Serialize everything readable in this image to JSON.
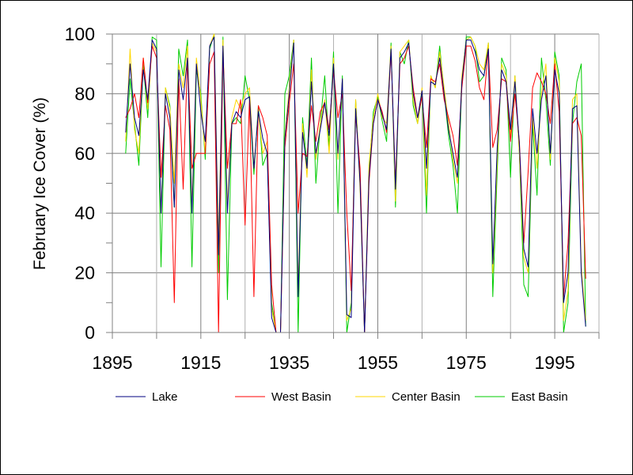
{
  "chart_data": {
    "type": "line",
    "title": "",
    "xlabel": "",
    "ylabel": "February Ice Cover (%)",
    "xlim": [
      1895,
      2005
    ],
    "ylim": [
      0,
      100
    ],
    "x_ticks": [
      "1895",
      "1915",
      "1935",
      "1955",
      "1975",
      "1995"
    ],
    "y_ticks": [
      "0",
      "20",
      "40",
      "60",
      "80",
      "100"
    ],
    "grid": true,
    "legend_position": "bottom",
    "x": [
      1898,
      1899,
      1900,
      1901,
      1902,
      1903,
      1904,
      1905,
      1906,
      1907,
      1908,
      1909,
      1910,
      1911,
      1912,
      1913,
      1914,
      1915,
      1916,
      1917,
      1918,
      1919,
      1920,
      1921,
      1922,
      1923,
      1924,
      1925,
      1926,
      1927,
      1928,
      1929,
      1930,
      1931,
      1932,
      1933,
      1934,
      1935,
      1936,
      1937,
      1938,
      1939,
      1940,
      1941,
      1942,
      1943,
      1944,
      1945,
      1946,
      1947,
      1948,
      1949,
      1950,
      1951,
      1952,
      1953,
      1954,
      1955,
      1956,
      1957,
      1958,
      1959,
      1960,
      1961,
      1962,
      1963,
      1964,
      1965,
      1966,
      1967,
      1968,
      1969,
      1970,
      1971,
      1972,
      1973,
      1974,
      1975,
      1976,
      1977,
      1978,
      1979,
      1980,
      1981,
      1982,
      1983,
      1984,
      1985,
      1986,
      1987,
      1988,
      1989,
      1990,
      1991,
      1992,
      1993,
      1994,
      1995,
      1996,
      1997,
      1998,
      1999,
      2000,
      2001,
      2002
    ],
    "series": [
      {
        "name": "Lake",
        "color": "#000080",
        "values": [
          67,
          90,
          72,
          66,
          88,
          78,
          98,
          95,
          40,
          80,
          72,
          42,
          88,
          78,
          92,
          40,
          90,
          74,
          64,
          96,
          99,
          26,
          96,
          40,
          70,
          74,
          72,
          78,
          79,
          55,
          74,
          65,
          60,
          5,
          0,
          0,
          65,
          80,
          97,
          12,
          67,
          55,
          84,
          60,
          68,
          77,
          66,
          90,
          60,
          85,
          6,
          5,
          75,
          50,
          0,
          52,
          70,
          78,
          73,
          68,
          95,
          48,
          92,
          94,
          97,
          80,
          72,
          81,
          55,
          84,
          83,
          92,
          80,
          68,
          60,
          52,
          84,
          98,
          98,
          94,
          88,
          86,
          95,
          23,
          62,
          88,
          84,
          68,
          84,
          63,
          28,
          22,
          75,
          60,
          78,
          86,
          60,
          88,
          80,
          10,
          20,
          75,
          76,
          20,
          2
        ]
      },
      {
        "name": "West Basin",
        "color": "#ff0000",
        "values": [
          72,
          75,
          80,
          72,
          92,
          77,
          96,
          92,
          52,
          76,
          68,
          10,
          85,
          48,
          92,
          55,
          60,
          60,
          60,
          90,
          94,
          0,
          94,
          55,
          70,
          70,
          78,
          36,
          78,
          12,
          76,
          72,
          66,
          16,
          0,
          0,
          62,
          77,
          90,
          40,
          60,
          59,
          76,
          64,
          74,
          77,
          68,
          88,
          72,
          80,
          40,
          14,
          73,
          55,
          0,
          50,
          70,
          78,
          74,
          67,
          94,
          50,
          90,
          92,
          96,
          82,
          72,
          79,
          62,
          85,
          84,
          90,
          78,
          72,
          66,
          56,
          82,
          96,
          96,
          91,
          82,
          78,
          95,
          62,
          68,
          85,
          84,
          64,
          80,
          64,
          30,
          54,
          82,
          87,
          84,
          80,
          70,
          90,
          74,
          12,
          30,
          70,
          72,
          66,
          18
        ]
      },
      {
        "name": "Center Basin",
        "color": "#ffd700",
        "values": [
          64,
          95,
          68,
          60,
          92,
          75,
          97,
          94,
          40,
          82,
          75,
          50,
          90,
          82,
          96,
          42,
          92,
          78,
          60,
          96,
          100,
          30,
          98,
          42,
          72,
          78,
          75,
          80,
          82,
          55,
          74,
          60,
          64,
          8,
          0,
          0,
          66,
          82,
          98,
          14,
          70,
          52,
          88,
          58,
          70,
          78,
          60,
          92,
          58,
          85,
          4,
          8,
          78,
          48,
          0,
          56,
          72,
          80,
          72,
          70,
          96,
          44,
          94,
          96,
          98,
          78,
          70,
          82,
          46,
          86,
          82,
          94,
          82,
          70,
          58,
          50,
          86,
          98,
          99,
          96,
          90,
          88,
          97,
          20,
          58,
          90,
          86,
          66,
          86,
          60,
          25,
          20,
          72,
          55,
          80,
          90,
          58,
          92,
          84,
          4,
          14,
          78,
          80,
          22,
          4
        ]
      },
      {
        "name": "East Basin",
        "color": "#00cc00",
        "values": [
          60,
          85,
          70,
          56,
          90,
          72,
          99,
          98,
          22,
          82,
          76,
          42,
          95,
          86,
          98,
          22,
          88,
          80,
          58,
          95,
          100,
          20,
          99,
          11,
          70,
          72,
          70,
          86,
          78,
          53,
          76,
          56,
          60,
          10,
          0,
          0,
          80,
          86,
          98,
          0,
          72,
          56,
          92,
          50,
          70,
          86,
          62,
          94,
          40,
          86,
          0,
          10,
          78,
          50,
          0,
          54,
          74,
          79,
          71,
          64,
          97,
          42,
          94,
          90,
          98,
          76,
          70,
          80,
          40,
          86,
          82,
          96,
          80,
          66,
          56,
          40,
          84,
          99,
          99,
          96,
          84,
          86,
          97,
          12,
          54,
          92,
          88,
          52,
          86,
          60,
          16,
          12,
          70,
          46,
          92,
          78,
          56,
          94,
          86,
          0,
          10,
          70,
          84,
          90,
          2
        ]
      }
    ]
  }
}
